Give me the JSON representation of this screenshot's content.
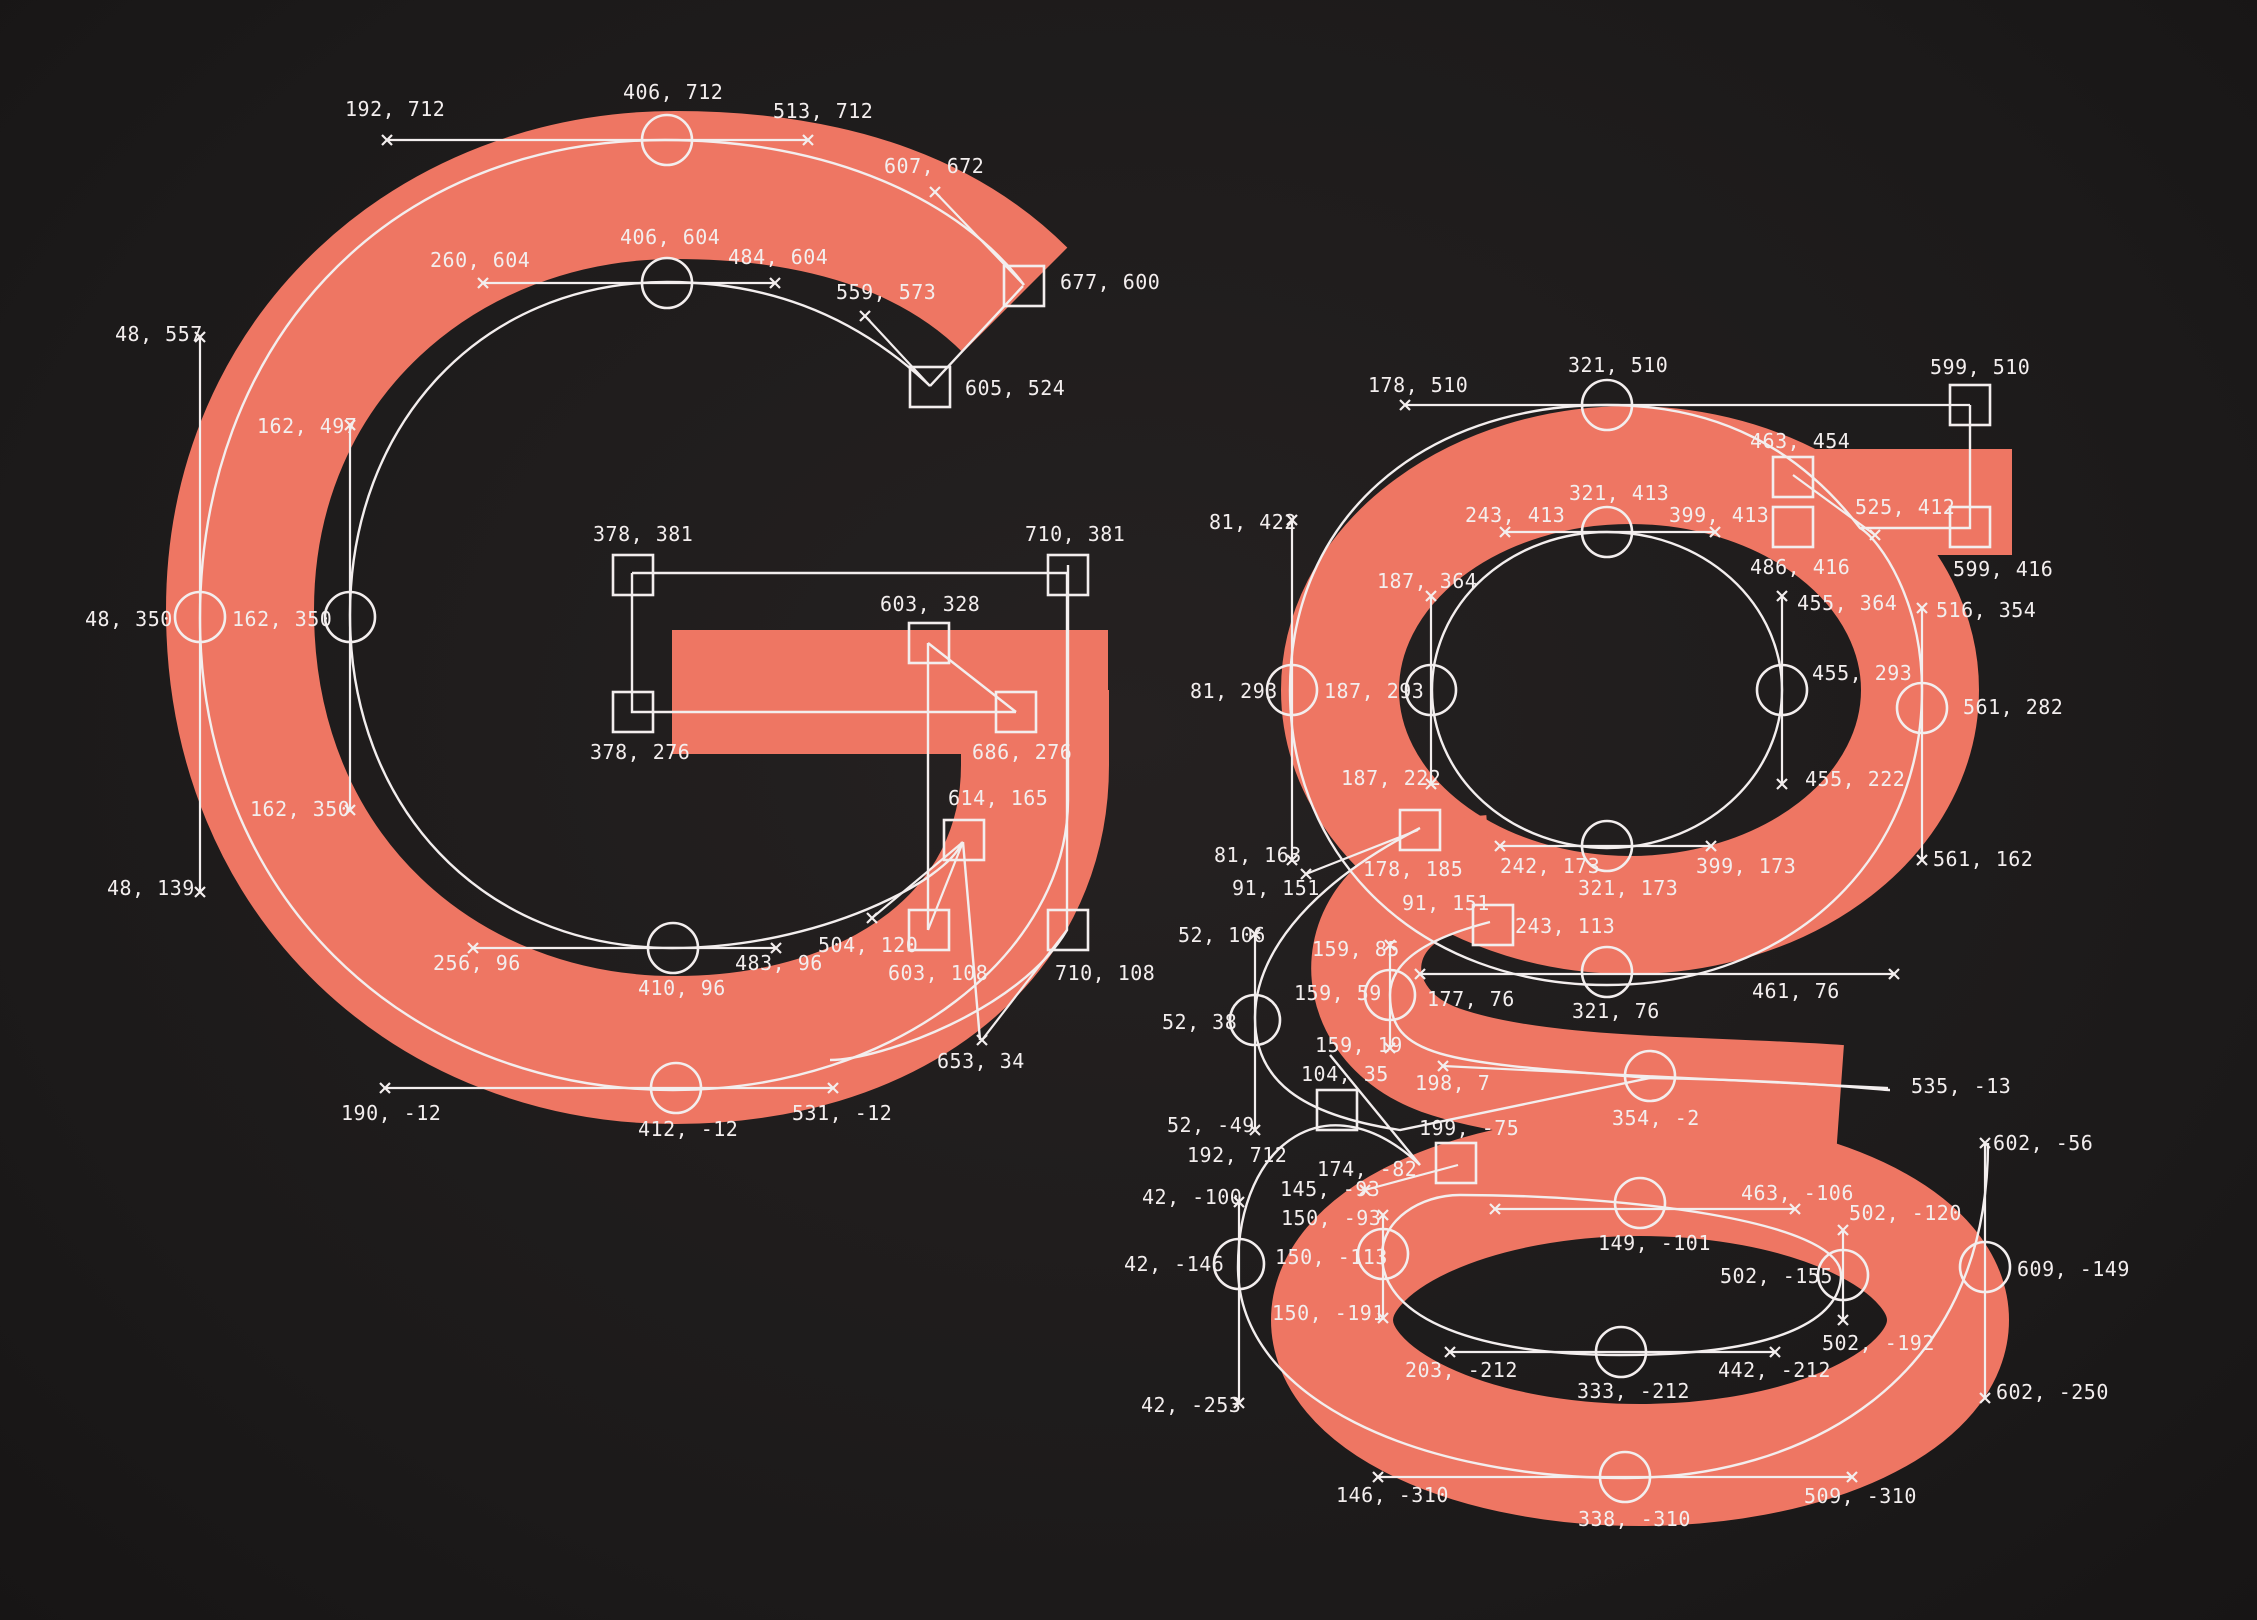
{
  "colors": {
    "background": "#1e1b1b",
    "glyph_fill": "#ee7663",
    "outline": "#f3eeee"
  },
  "glyphs": [
    {
      "character": "G"
    },
    {
      "character": "g"
    }
  ],
  "coordinate_labels": [
    "192, 712",
    "406, 712",
    "513, 712",
    "607, 672",
    "677, 600",
    "260, 604",
    "406, 604",
    "484, 604",
    "559, 573",
    "605, 524",
    "48, 557",
    "162, 497",
    "48, 350",
    "162, 350",
    "162, 350",
    "48, 139",
    "378, 381",
    "710, 381",
    "603, 328",
    "378, 276",
    "686, 276",
    "614, 165",
    "504, 120",
    "603, 108",
    "710, 108",
    "653, 34",
    "256, 96",
    "410, 96",
    "483, 96",
    "190, -12",
    "412, -12",
    "531, -12",
    "178, 510",
    "321, 510",
    "599, 510",
    "463, 454",
    "321, 413",
    "243, 413",
    "399, 413",
    "525, 412",
    "486, 416",
    "599, 416",
    "81, 422",
    "187, 364",
    "455, 364",
    "516, 354",
    "81, 293",
    "187, 293",
    "455, 293",
    "561, 282",
    "187, 222",
    "455, 222",
    "81, 163",
    "91, 151",
    "178, 185",
    "242, 173",
    "321, 173",
    "399, 173",
    "561, 162",
    "91, 151",
    "243, 113",
    "52, 106",
    "159, 85",
    "52, 38",
    "159, 59",
    "177, 76",
    "321, 76",
    "461, 76",
    "159, 19",
    "104, 35",
    "198, 7",
    "354, -2",
    "535, -13",
    "52, -49",
    "199, -75",
    "192, 712",
    "174, -82",
    "145, -93",
    "602, -56",
    "42, -100",
    "150, -93",
    "463, -106",
    "502, -120",
    "149, -101",
    "42, -146",
    "150, -113",
    "502, -155",
    "609, -149",
    "150, -191",
    "502, -192",
    "203, -212",
    "442, -212",
    "333, -212",
    "42, -253",
    "602, -250",
    "146, -310",
    "338, -310",
    "509, -310"
  ]
}
